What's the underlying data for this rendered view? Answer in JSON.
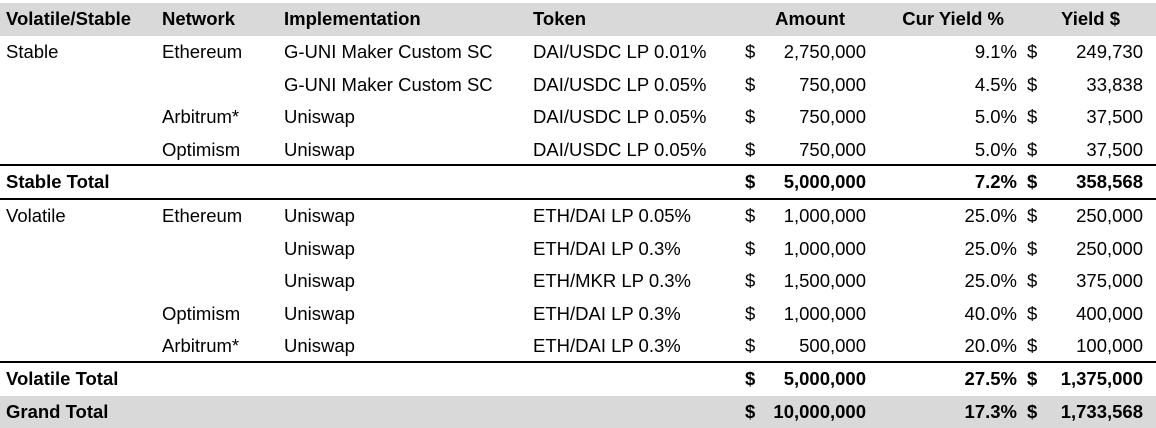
{
  "headers": {
    "volatile_stable": "Volatile/Stable",
    "network": "Network",
    "implementation": "Implementation",
    "token": "Token",
    "amount": "Amount",
    "cur_yield_pct": "Cur Yield %",
    "yield_usd": "Yield $"
  },
  "currency_symbol": "$",
  "rows": [
    {
      "vs": "Stable",
      "network": "Ethereum",
      "impl": "G-UNI Maker Custom SC",
      "token": "DAI/USDC LP 0.01%",
      "amount": "2,750,000",
      "yield_pct": "9.1%",
      "yield_usd": "249,730"
    },
    {
      "vs": "",
      "network": "",
      "impl": "G-UNI Maker Custom SC",
      "token": "DAI/USDC LP 0.05%",
      "amount": "750,000",
      "yield_pct": "4.5%",
      "yield_usd": "33,838"
    },
    {
      "vs": "",
      "network": "Arbitrum*",
      "impl": "Uniswap",
      "token": "DAI/USDC LP 0.05%",
      "amount": "750,000",
      "yield_pct": "5.0%",
      "yield_usd": "37,500"
    },
    {
      "vs": "",
      "network": "Optimism",
      "impl": "Uniswap",
      "token": "DAI/USDC LP 0.05%",
      "amount": "750,000",
      "yield_pct": "5.0%",
      "yield_usd": "37,500"
    },
    {
      "vs": "Stable Total",
      "network": "",
      "impl": "",
      "token": "",
      "amount": "5,000,000",
      "yield_pct": "7.2%",
      "yield_usd": "358,568"
    },
    {
      "vs": "Volatile",
      "network": "Ethereum",
      "impl": "Uniswap",
      "token": "ETH/DAI LP 0.05%",
      "amount": "1,000,000",
      "yield_pct": "25.0%",
      "yield_usd": "250,000"
    },
    {
      "vs": "",
      "network": "",
      "impl": "Uniswap",
      "token": "ETH/DAI LP 0.3%",
      "amount": "1,000,000",
      "yield_pct": "25.0%",
      "yield_usd": "250,000"
    },
    {
      "vs": "",
      "network": "",
      "impl": "Uniswap",
      "token": "ETH/MKR LP 0.3%",
      "amount": "1,500,000",
      "yield_pct": "25.0%",
      "yield_usd": "375,000"
    },
    {
      "vs": "",
      "network": "Optimism",
      "impl": "Uniswap",
      "token": "ETH/DAI LP 0.3%",
      "amount": "1,000,000",
      "yield_pct": "40.0%",
      "yield_usd": "400,000"
    },
    {
      "vs": "",
      "network": "Arbitrum*",
      "impl": "Uniswap",
      "token": "ETH/DAI LP 0.3%",
      "amount": "500,000",
      "yield_pct": "20.0%",
      "yield_usd": "100,000"
    },
    {
      "vs": "Volatile Total",
      "network": "",
      "impl": "",
      "token": "",
      "amount": "5,000,000",
      "yield_pct": "27.5%",
      "yield_usd": "1,375,000"
    },
    {
      "vs": "Grand Total",
      "network": "",
      "impl": "",
      "token": "",
      "amount": "10,000,000",
      "yield_pct": "17.3%",
      "yield_usd": "1,733,568"
    }
  ]
}
